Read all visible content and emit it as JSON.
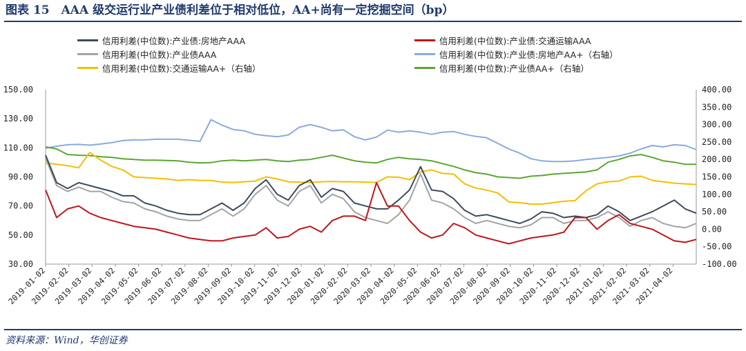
{
  "figure": {
    "title": "图表 15　AAA 级交运行业产业债利差位于相对低位，AA+尚有一定挖掘空间（bp）",
    "source": "资料来源：Wind，华创证券"
  },
  "chart_data": {
    "type": "line",
    "title": "",
    "xlabel": "",
    "ylabel": "",
    "x_ticks": [
      "2019-01-02",
      "2019-02-02",
      "2019-03-02",
      "2019-04-02",
      "2019-05-02",
      "2019-06-02",
      "2019-07-02",
      "2019-08-02",
      "2019-09-02",
      "2019-10-02",
      "2019-11-02",
      "2019-12-02",
      "2020-01-02",
      "2020-02-02",
      "2020-03-02",
      "2020-04-02",
      "2020-05-02",
      "2020-06-02",
      "2020-07-02",
      "2020-08-02",
      "2020-09-02",
      "2020-10-02",
      "2020-11-02",
      "2020-12-02",
      "2021-01-02",
      "2021-02-02",
      "2021-03-02",
      "2021-04-02"
    ],
    "y_left": {
      "ticks": [
        "150.00",
        "130.00",
        "110.00",
        "90.00",
        "70.00",
        "50.00",
        "30.00"
      ],
      "ylim": [
        30,
        150
      ]
    },
    "y_right": {
      "ticks": [
        "400.00",
        "350.00",
        "300.00",
        "250.00",
        "200.00",
        "150.00",
        "100.00",
        "50.00",
        "0.00",
        "-50.00",
        "-100.00"
      ],
      "ylim": [
        -100,
        400
      ]
    },
    "legend_placement": "top, two columns",
    "grid": false,
    "series": [
      {
        "name": "信用利差(中位数):产业债:房地产AAA",
        "axis": "left",
        "color": "#3b4a5e",
        "values": [
          105,
          86,
          82,
          86,
          84,
          82,
          80,
          77,
          77,
          72,
          70,
          67,
          65,
          64,
          64,
          68,
          72,
          67,
          72,
          82,
          88,
          78,
          74,
          84,
          88,
          76,
          82,
          80,
          72,
          70,
          68,
          68,
          74,
          81,
          97,
          81,
          80,
          75,
          67,
          63,
          64,
          62,
          60,
          58,
          61,
          66,
          65,
          62,
          63,
          62,
          64,
          70,
          66,
          60,
          63,
          66,
          70,
          74,
          68,
          65
        ]
      },
      {
        "name": "信用利差(中位数):产业债:交通运输AAA",
        "axis": "left",
        "color": "#c0141a",
        "values": [
          81,
          62,
          68,
          70,
          65,
          62,
          60,
          58,
          56,
          55,
          54,
          52,
          50,
          48,
          47,
          46,
          46,
          48,
          49,
          50,
          55,
          48,
          49,
          54,
          56,
          52,
          60,
          63,
          63,
          60,
          86,
          70,
          70,
          60,
          52,
          48,
          50,
          58,
          55,
          50,
          48,
          46,
          44,
          46,
          48,
          49,
          50,
          52,
          62,
          62,
          54,
          60,
          64,
          58,
          56,
          54,
          50,
          46,
          45,
          47
        ]
      },
      {
        "name": "信用利差(中位数):产业债AAA",
        "axis": "left",
        "color": "#a3a3a3",
        "values": [
          103,
          84,
          80,
          83,
          80,
          80,
          76,
          73,
          72,
          68,
          66,
          63,
          61,
          60,
          60,
          64,
          68,
          63,
          68,
          78,
          84,
          74,
          70,
          80,
          84,
          72,
          78,
          75,
          66,
          62,
          60,
          58,
          64,
          74,
          92,
          74,
          72,
          68,
          62,
          58,
          60,
          58,
          56,
          55,
          57,
          62,
          62,
          58,
          60,
          60,
          62,
          66,
          62,
          56,
          60,
          62,
          58,
          56,
          55,
          58
        ]
      },
      {
        "name": "信用利差(中位数):产业债:房地产AA+（右轴）",
        "axis": "right",
        "color": "#8aaadc",
        "values": [
          232,
          238,
          242,
          243,
          241,
          244,
          248,
          254,
          256,
          256,
          258,
          258,
          258,
          255,
          252,
          314,
          298,
          286,
          282,
          272,
          268,
          265,
          270,
          292,
          300,
          292,
          282,
          285,
          265,
          256,
          264,
          284,
          278,
          282,
          278,
          272,
          278,
          280,
          272,
          266,
          262,
          246,
          230,
          218,
          202,
          196,
          194,
          194,
          196,
          200,
          203,
          206,
          210,
          218,
          230,
          240,
          236,
          242,
          240,
          228
        ]
      },
      {
        "name": "信用利差(中位数):交通运输AA+（右轴）",
        "axis": "right",
        "color": "#f5be00",
        "values": [
          190,
          186,
          182,
          176,
          220,
          198,
          180,
          170,
          150,
          148,
          146,
          144,
          140,
          142,
          140,
          140,
          135,
          134,
          136,
          138,
          150,
          144,
          136,
          135,
          134,
          136,
          137,
          136,
          136,
          135,
          134,
          150,
          149,
          142,
          164,
          170,
          160,
          158,
          130,
          118,
          112,
          104,
          78,
          76,
          72,
          72,
          76,
          80,
          82,
          110,
          130,
          136,
          138,
          150,
          152,
          140,
          136,
          132,
          130,
          128
        ]
      },
      {
        "name": "信用利差(中位数):产业债AA+（右轴）",
        "axis": "right",
        "color": "#5aa631",
        "values": [
          236,
          230,
          214,
          212,
          211,
          208,
          206,
          202,
          200,
          198,
          198,
          197,
          196,
          192,
          190,
          191,
          196,
          198,
          196,
          198,
          200,
          196,
          194,
          198,
          200,
          206,
          212,
          204,
          196,
          192,
          190,
          200,
          206,
          202,
          200,
          196,
          188,
          180,
          170,
          162,
          158,
          150,
          148,
          146,
          152,
          154,
          158,
          160,
          162,
          164,
          170,
          192,
          200,
          210,
          214,
          206,
          196,
          192,
          186,
          186
        ]
      }
    ]
  }
}
